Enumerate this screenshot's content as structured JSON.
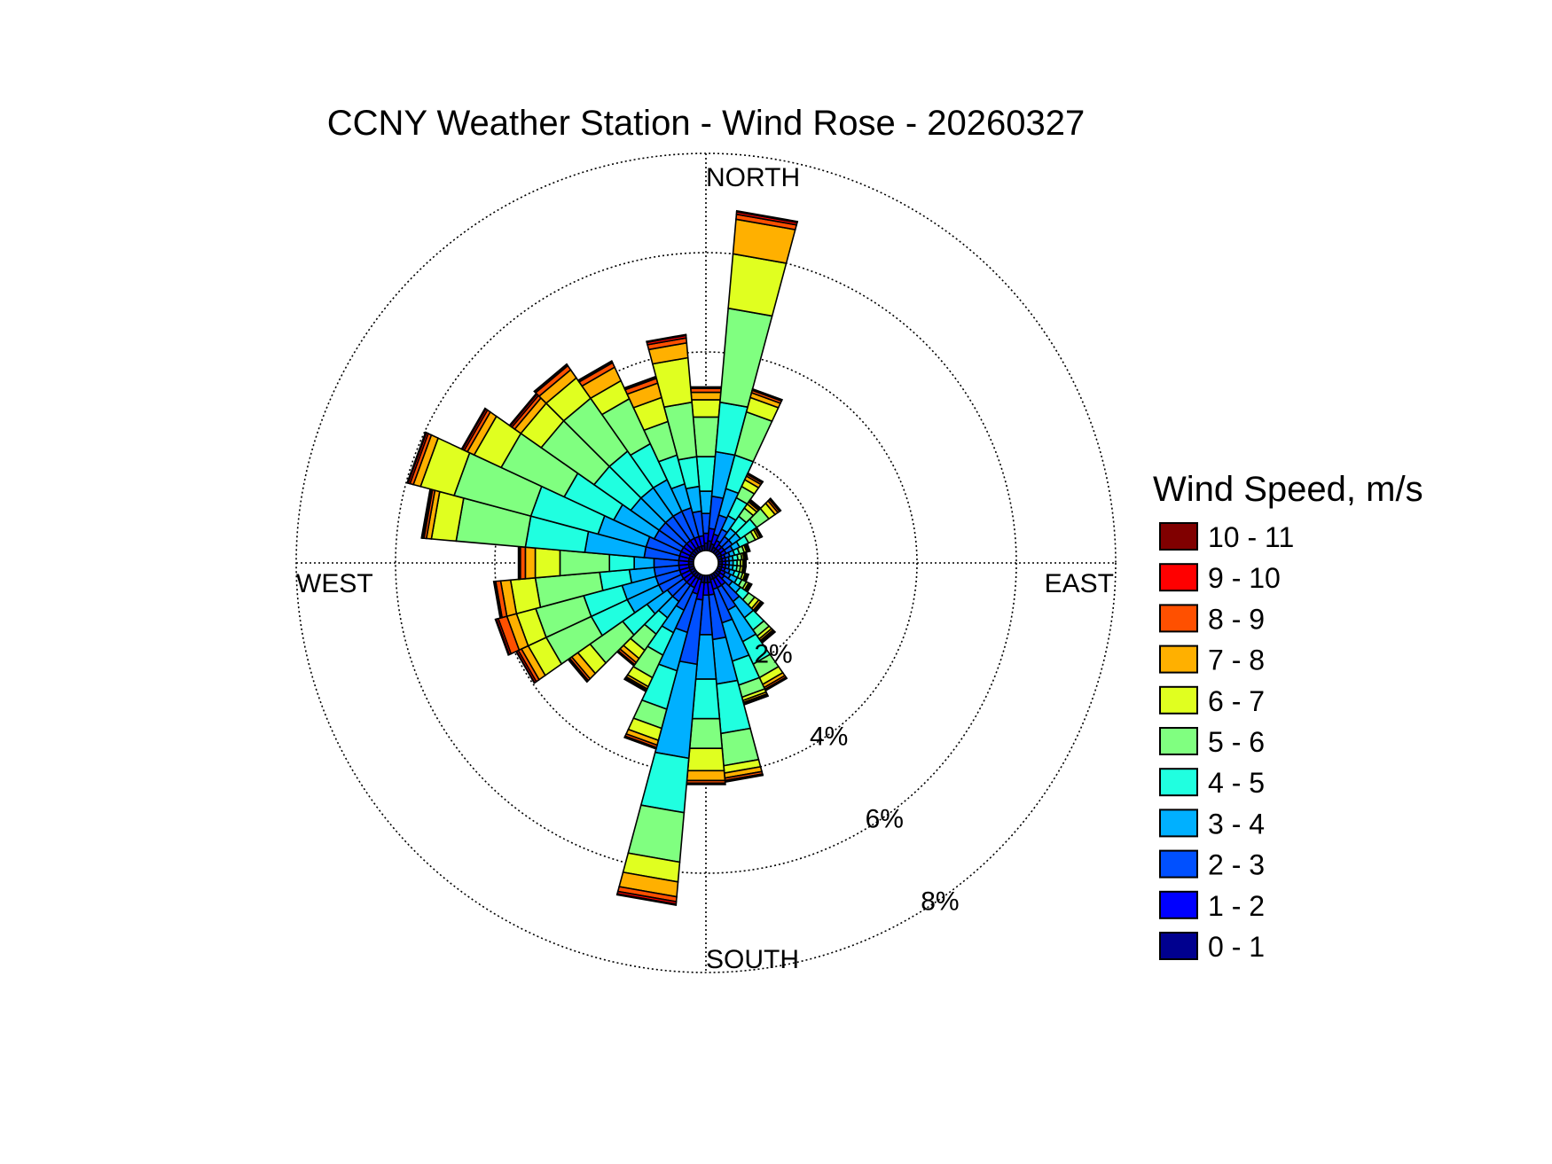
{
  "chart_data": {
    "type": "wind-rose",
    "title": "CCNY Weather Station - Wind Rose - 20260327",
    "directions": {
      "north": "NORTH",
      "south": "SOUTH",
      "east": "EAST",
      "west": "WEST"
    },
    "radial_ticks": [
      {
        "value": 2,
        "label": "2%"
      },
      {
        "value": 4,
        "label": "4%"
      },
      {
        "value": 6,
        "label": "6%"
      },
      {
        "value": 8,
        "label": "8%"
      }
    ],
    "radial_max": 8,
    "grid": true,
    "legend": {
      "title": "Wind Speed, m/s",
      "placement": "right",
      "bins": [
        {
          "label": "0 - 1",
          "color": "#00008f"
        },
        {
          "label": "1 - 2",
          "color": "#0000ff"
        },
        {
          "label": "2 - 3",
          "color": "#0050ff"
        },
        {
          "label": "3 - 4",
          "color": "#00b0ff"
        },
        {
          "label": "4 - 5",
          "color": "#20ffe0"
        },
        {
          "label": "5 - 6",
          "color": "#80ff80"
        },
        {
          "label": "6 - 7",
          "color": "#e0ff20"
        },
        {
          "label": "7 - 8",
          "color": "#ffb000"
        },
        {
          "label": "8 - 9",
          "color": "#ff5000"
        },
        {
          "label": "9 - 10",
          "color": "#ff0000"
        },
        {
          "label": "10 - 11",
          "color": "#800000"
        }
      ]
    },
    "sector_width_deg": 10,
    "sectors": [
      {
        "dir": 0,
        "cum": [
          0.15,
          0.35,
          0.75,
          1.2,
          1.9,
          2.7,
          3.05,
          3.2,
          3.28,
          3.3,
          3.31
        ]
      },
      {
        "dir": 10,
        "cum": [
          0.2,
          0.45,
          1.1,
          2.0,
          3.0,
          4.9,
          6.0,
          6.7,
          6.8,
          6.85,
          6.87
        ]
      },
      {
        "dir": 20,
        "cum": [
          0.15,
          0.35,
          0.75,
          1.3,
          2.0,
          2.9,
          3.2,
          3.3,
          3.35,
          3.37,
          3.38
        ]
      },
      {
        "dir": 30,
        "cum": [
          0.1,
          0.25,
          0.5,
          0.8,
          1.2,
          1.45,
          1.6,
          1.68,
          1.72,
          1.74,
          1.75
        ]
      },
      {
        "dir": 40,
        "cum": [
          0.1,
          0.2,
          0.4,
          0.6,
          0.9,
          1.1,
          1.2,
          1.25,
          1.28,
          1.3,
          1.31
        ]
      },
      {
        "dir": 50,
        "cum": [
          0.1,
          0.2,
          0.4,
          0.6,
          1.0,
          1.3,
          1.45,
          1.52,
          1.56,
          1.58,
          1.59
        ]
      },
      {
        "dir": 60,
        "cum": [
          0.1,
          0.2,
          0.35,
          0.5,
          0.7,
          0.85,
          0.92,
          0.96,
          0.98,
          0.99,
          1.0
        ]
      },
      {
        "dir": 70,
        "cum": [
          0.08,
          0.15,
          0.25,
          0.35,
          0.45,
          0.55,
          0.6,
          0.63,
          0.65,
          0.66,
          0.67
        ]
      },
      {
        "dir": 80,
        "cum": [
          0.08,
          0.15,
          0.22,
          0.3,
          0.4,
          0.48,
          0.52,
          0.55,
          0.57,
          0.58,
          0.59
        ]
      },
      {
        "dir": 90,
        "cum": [
          0.08,
          0.15,
          0.22,
          0.3,
          0.38,
          0.45,
          0.5,
          0.52,
          0.54,
          0.55,
          0.56
        ]
      },
      {
        "dir": 100,
        "cum": [
          0.08,
          0.15,
          0.22,
          0.3,
          0.38,
          0.45,
          0.5,
          0.52,
          0.54,
          0.55,
          0.56
        ]
      },
      {
        "dir": 110,
        "cum": [
          0.08,
          0.15,
          0.25,
          0.35,
          0.45,
          0.52,
          0.57,
          0.6,
          0.62,
          0.63,
          0.64
        ]
      },
      {
        "dir": 120,
        "cum": [
          0.08,
          0.18,
          0.3,
          0.45,
          0.55,
          0.65,
          0.7,
          0.73,
          0.75,
          0.76,
          0.77
        ]
      },
      {
        "dir": 130,
        "cum": [
          0.1,
          0.2,
          0.4,
          0.6,
          0.8,
          0.95,
          1.05,
          1.1,
          1.13,
          1.15,
          1.16
        ]
      },
      {
        "dir": 140,
        "cum": [
          0.1,
          0.3,
          0.7,
          1.1,
          1.4,
          1.55,
          1.62,
          1.66,
          1.69,
          1.71,
          1.72
        ]
      },
      {
        "dir": 150,
        "cum": [
          0.1,
          0.3,
          0.8,
          1.5,
          2.0,
          2.3,
          2.45,
          2.52,
          2.56,
          2.58,
          2.59
        ]
      },
      {
        "dir": 160,
        "cum": [
          0.1,
          0.3,
          1.0,
          1.8,
          2.3,
          2.55,
          2.62,
          2.66,
          2.69,
          2.7,
          2.71
        ]
      },
      {
        "dir": 170,
        "cum": [
          0.15,
          0.4,
          1.3,
          2.2,
          3.2,
          3.85,
          4.0,
          4.1,
          4.15,
          4.17,
          4.18
        ]
      },
      {
        "dir": 180,
        "cum": [
          0.15,
          0.4,
          1.2,
          2.1,
          2.9,
          3.5,
          3.95,
          4.15,
          4.2,
          4.22,
          4.23
        ]
      },
      {
        "dir": 190,
        "cum": [
          0.15,
          0.5,
          1.8,
          3.7,
          4.8,
          5.8,
          6.2,
          6.5,
          6.6,
          6.65,
          6.67
        ]
      },
      {
        "dir": 200,
        "cum": [
          0.1,
          0.4,
          1.2,
          2.0,
          2.8,
          3.2,
          3.45,
          3.55,
          3.6,
          3.62,
          3.63
        ]
      },
      {
        "dir": 210,
        "cum": [
          0.1,
          0.3,
          0.8,
          1.3,
          1.8,
          2.3,
          2.5,
          2.55,
          2.58,
          2.6,
          2.61
        ]
      },
      {
        "dir": 220,
        "cum": [
          0.1,
          0.3,
          0.7,
          1.1,
          1.5,
          1.9,
          2.1,
          2.2,
          2.25,
          2.27,
          2.28
        ]
      },
      {
        "dir": 230,
        "cum": [
          0.1,
          0.3,
          0.7,
          1.2,
          1.8,
          2.6,
          2.9,
          3.05,
          3.1,
          3.13,
          3.14
        ]
      },
      {
        "dir": 240,
        "cum": [
          0.1,
          0.3,
          0.8,
          1.5,
          2.3,
          3.3,
          3.7,
          3.85,
          3.92,
          3.96,
          3.97
        ]
      },
      {
        "dir": 250,
        "cum": [
          0.1,
          0.3,
          0.8,
          1.5,
          2.3,
          3.3,
          3.7,
          3.9,
          4.08,
          4.12,
          4.14
        ]
      },
      {
        "dir": 260,
        "cum": [
          0.1,
          0.3,
          0.8,
          1.3,
          1.9,
          3.2,
          3.7,
          3.9,
          4.0,
          4.03,
          4.04
        ]
      },
      {
        "dir": 270,
        "cum": [
          0.1,
          0.3,
          0.8,
          1.2,
          1.7,
          2.7,
          3.2,
          3.4,
          3.5,
          3.53,
          3.54
        ]
      },
      {
        "dir": 280,
        "cum": [
          0.1,
          0.3,
          1.0,
          2.2,
          3.4,
          4.8,
          5.3,
          5.4,
          5.45,
          5.48,
          5.5
        ]
      },
      {
        "dir": 290,
        "cum": [
          0.1,
          0.3,
          1.0,
          2.0,
          3.4,
          5.0,
          5.7,
          5.85,
          5.92,
          5.96,
          5.98
        ]
      },
      {
        "dir": 300,
        "cum": [
          0.1,
          0.3,
          0.9,
          1.8,
          2.9,
          4.3,
          4.9,
          5.05,
          5.12,
          5.16,
          5.18
        ]
      },
      {
        "dir": 310,
        "cum": [
          0.1,
          0.3,
          0.9,
          1.6,
          2.5,
          3.8,
          4.3,
          4.45,
          4.52,
          4.56,
          4.58
        ]
      },
      {
        "dir": 320,
        "cum": [
          0.1,
          0.3,
          0.9,
          1.6,
          2.5,
          3.8,
          4.3,
          4.5,
          4.6,
          4.63,
          4.64
        ]
      },
      {
        "dir": 330,
        "cum": [
          0.1,
          0.3,
          0.9,
          1.6,
          2.4,
          3.4,
          3.8,
          4.1,
          4.2,
          4.23,
          4.24
        ]
      },
      {
        "dir": 340,
        "cum": [
          0.1,
          0.3,
          0.9,
          1.4,
          2.0,
          2.7,
          3.2,
          3.5,
          3.6,
          3.63,
          3.64
        ]
      },
      {
        "dir": 350,
        "cum": [
          0.1,
          0.3,
          0.8,
          1.3,
          1.9,
          3.0,
          3.9,
          4.2,
          4.3,
          4.35,
          4.37
        ]
      }
    ]
  }
}
